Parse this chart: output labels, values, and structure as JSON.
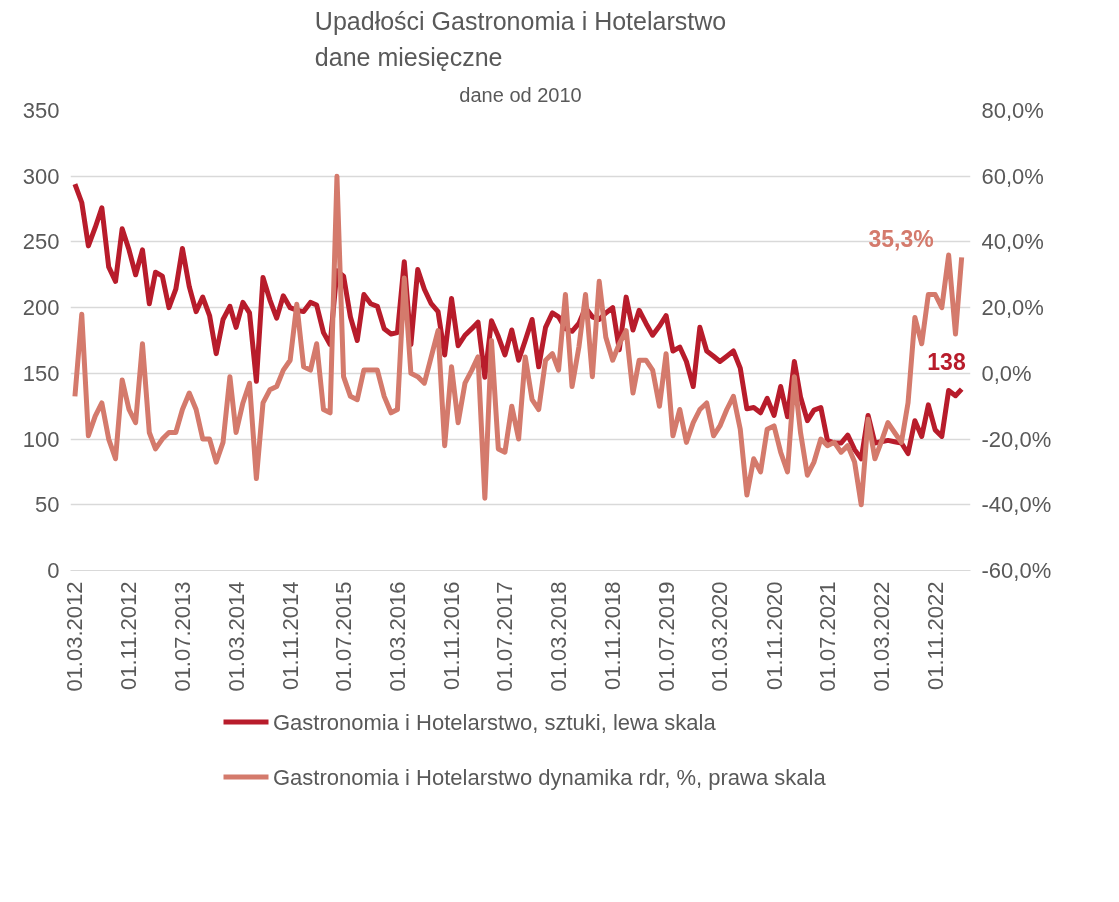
{
  "chart_data": {
    "type": "line",
    "title": "Upadłości Gastronomia i Hotelarstwo\ndane miesięczne",
    "subtitle": "dane od 2010",
    "x": [
      "2012-03",
      "2012-04",
      "2012-05",
      "2012-06",
      "2012-07",
      "2012-08",
      "2012-09",
      "2012-10",
      "2012-11",
      "2012-12",
      "2013-01",
      "2013-02",
      "2013-03",
      "2013-04",
      "2013-05",
      "2013-06",
      "2013-07",
      "2013-08",
      "2013-09",
      "2013-10",
      "2013-11",
      "2013-12",
      "2014-01",
      "2014-02",
      "2014-03",
      "2014-04",
      "2014-05",
      "2014-06",
      "2014-07",
      "2014-08",
      "2014-09",
      "2014-10",
      "2014-11",
      "2014-12",
      "2015-01",
      "2015-02",
      "2015-03",
      "2015-04",
      "2015-05",
      "2015-06",
      "2015-07",
      "2015-08",
      "2015-09",
      "2015-10",
      "2015-11",
      "2015-12",
      "2016-01",
      "2016-02",
      "2016-03",
      "2016-04",
      "2016-05",
      "2016-06",
      "2016-07",
      "2016-08",
      "2016-09",
      "2016-10",
      "2016-11",
      "2016-12",
      "2017-01",
      "2017-02",
      "2017-03",
      "2017-04",
      "2017-05",
      "2017-06",
      "2017-07",
      "2017-08",
      "2017-09",
      "2017-10",
      "2017-11",
      "2017-12",
      "2018-01",
      "2018-02",
      "2018-03",
      "2018-04",
      "2018-05",
      "2018-06",
      "2018-07",
      "2018-08",
      "2018-09",
      "2018-10",
      "2018-11",
      "2018-12",
      "2019-01",
      "2019-02",
      "2019-03",
      "2019-04",
      "2019-05",
      "2019-06",
      "2019-07",
      "2019-08",
      "2019-09",
      "2019-10",
      "2019-11",
      "2019-12",
      "2020-01",
      "2020-02",
      "2020-03",
      "2020-04",
      "2020-05",
      "2020-06",
      "2020-07",
      "2020-08",
      "2020-09",
      "2020-10",
      "2020-11",
      "2020-12",
      "2021-01",
      "2021-02",
      "2021-03",
      "2021-04",
      "2021-05",
      "2021-06",
      "2021-07",
      "2021-08",
      "2021-09",
      "2021-10",
      "2021-11",
      "2021-12",
      "2022-01",
      "2022-02",
      "2022-03",
      "2022-04",
      "2022-05",
      "2022-06",
      "2022-07",
      "2022-08",
      "2022-09",
      "2022-10",
      "2022-11",
      "2022-12",
      "2023-01",
      "2023-02",
      "2023-03"
    ],
    "xlim": [
      "2012-02-10",
      "2023-04-10"
    ],
    "xticks": [
      {
        "value": "2012-03",
        "label": "01.03.2012"
      },
      {
        "value": "2012-11",
        "label": "01.11.2012"
      },
      {
        "value": "2013-07",
        "label": "01.07.2013"
      },
      {
        "value": "2014-03",
        "label": "01.03.2014"
      },
      {
        "value": "2014-11",
        "label": "01.11.2014"
      },
      {
        "value": "2015-07",
        "label": "01.07.2015"
      },
      {
        "value": "2016-03",
        "label": "01.03.2016"
      },
      {
        "value": "2016-11",
        "label": "01.11.2016"
      },
      {
        "value": "2017-07",
        "label": "01.07.2017"
      },
      {
        "value": "2018-03",
        "label": "01.03.2018"
      },
      {
        "value": "2018-11",
        "label": "01.11.2018"
      },
      {
        "value": "2019-07",
        "label": "01.07.2019"
      },
      {
        "value": "2020-03",
        "label": "01.03.2020"
      },
      {
        "value": "2020-11",
        "label": "01.11.2020"
      },
      {
        "value": "2021-07",
        "label": "01.07.2021"
      },
      {
        "value": "2022-03",
        "label": "01.03.2022"
      },
      {
        "value": "2022-11",
        "label": "01.11.2022"
      }
    ],
    "ylim": [
      0,
      350
    ],
    "yticks": [
      0,
      50,
      100,
      150,
      200,
      250,
      300,
      350
    ],
    "y2lim": [
      -60,
      80
    ],
    "y2ticks": [
      {
        "value": -60,
        "label": "-60,0%"
      },
      {
        "value": -40,
        "label": "-40,0%"
      },
      {
        "value": -20,
        "label": "-20,0%"
      },
      {
        "value": 0,
        "label": "0,0%"
      },
      {
        "value": 20,
        "label": "20,0%"
      },
      {
        "value": 40,
        "label": "40,0%"
      },
      {
        "value": 60,
        "label": "60,0%"
      },
      {
        "value": 80,
        "label": "80,0%"
      }
    ],
    "grid": "y",
    "legend": "bottom",
    "marker": "none",
    "line_style": "solid",
    "series": [
      {
        "name": "Gastronomia i Hotelarstwo, sztuki, lewa skala",
        "color": "#b81c2b",
        "values": [
          294,
          280,
          247,
          261,
          276,
          231,
          220,
          260,
          244,
          225,
          244,
          203,
          227,
          224,
          200,
          214,
          245,
          216,
          197,
          208,
          194,
          165,
          191,
          201,
          185,
          204,
          196,
          144,
          223,
          206,
          192,
          209,
          200,
          198,
          197,
          204,
          202,
          181,
          172,
          228,
          224,
          193,
          175,
          210,
          203,
          201,
          184,
          180,
          181,
          235,
          172,
          229,
          214,
          203,
          197,
          164,
          207,
          171,
          179,
          184,
          189,
          147,
          190,
          178,
          164,
          183,
          160,
          175,
          191,
          155,
          185,
          196,
          193,
          184,
          182,
          188,
          200,
          193,
          191,
          196,
          200,
          168,
          208,
          183,
          198,
          188,
          179,
          186,
          194,
          167,
          170,
          159,
          140,
          185,
          167,
          163,
          159,
          163,
          167,
          154,
          123,
          124,
          120,
          131,
          118,
          140,
          117,
          159,
          132,
          114,
          122,
          124,
          99,
          97,
          97,
          103,
          92,
          85,
          118,
          97,
          98,
          99,
          98,
          97,
          89,
          114,
          102,
          126,
          107,
          102,
          137,
          133,
          138
        ],
        "value_labels": [
          null,
          null,
          null,
          null,
          null,
          null,
          null,
          null,
          null,
          null,
          null,
          null,
          null,
          null,
          null,
          null,
          null,
          null,
          null,
          null,
          null,
          null,
          null,
          null,
          null,
          null,
          null,
          null,
          null,
          null,
          null,
          null,
          null,
          null,
          null,
          null,
          null,
          null,
          null,
          null,
          null,
          null,
          null,
          null,
          null,
          null,
          null,
          null,
          null,
          null,
          null,
          null,
          null,
          null,
          null,
          null,
          null,
          null,
          null,
          null,
          null,
          null,
          null,
          null,
          null,
          null,
          null,
          null,
          null,
          null,
          null,
          null,
          null,
          null,
          null,
          null,
          null,
          null,
          null,
          null,
          null,
          null,
          null,
          null,
          null,
          null,
          null,
          null,
          null,
          null,
          null,
          null,
          null,
          null,
          null,
          null,
          null,
          null,
          null,
          null,
          null,
          null,
          null,
          null,
          null,
          null,
          null,
          null,
          null,
          null,
          null,
          null,
          null,
          null,
          null,
          null,
          null,
          null,
          null,
          null,
          null,
          null,
          null,
          null,
          null,
          null,
          null,
          null,
          null,
          null,
          null,
          null,
          "138"
        ]
      },
      {
        "name": "Gastronomia i Hotelarstwo dynamika rdr, %, prawa skala",
        "color": "#d47a6c",
        "axis": "y2",
        "values": [
          -7,
          18,
          -19,
          -13,
          -9,
          -20,
          -26,
          -2,
          -11,
          -15,
          9,
          -18,
          -23,
          -20,
          -18,
          -18,
          -11,
          -6,
          -11,
          -20,
          -20,
          -27,
          -21,
          -1,
          -18,
          -9,
          -3,
          -32,
          -9,
          -5,
          -4,
          1,
          4,
          21,
          2,
          1,
          9,
          -11,
          -12,
          60,
          -1,
          -7,
          -8,
          1,
          1,
          1,
          -7,
          -12,
          -11,
          29,
          0,
          -1,
          -3,
          5,
          13,
          -22,
          2,
          -15,
          -3,
          1,
          5,
          -38,
          10,
          -23,
          -24,
          -10,
          -20,
          5,
          -8,
          -11,
          4,
          6,
          1,
          24,
          -4,
          8,
          24,
          -1,
          28,
          11,
          4,
          9,
          13,
          -6,
          4,
          4,
          1,
          -10,
          6,
          -19,
          -11,
          -21,
          -15,
          -11,
          -9,
          -19,
          -16,
          -11,
          -7,
          -17,
          -37,
          -26,
          -30,
          -17,
          -16,
          -24,
          -30,
          -1,
          -18,
          -31,
          -27,
          -20,
          -22,
          -21,
          -24,
          -22,
          -27,
          -40,
          -14,
          -26,
          -21,
          -15,
          -18,
          -21,
          -9,
          17,
          9,
          24,
          24,
          20,
          36,
          12,
          35.3
        ],
        "value_labels": [
          null,
          null,
          null,
          null,
          null,
          null,
          null,
          null,
          null,
          null,
          null,
          null,
          null,
          null,
          null,
          null,
          null,
          null,
          null,
          null,
          null,
          null,
          null,
          null,
          null,
          null,
          null,
          null,
          null,
          null,
          null,
          null,
          null,
          null,
          null,
          null,
          null,
          null,
          null,
          null,
          null,
          null,
          null,
          null,
          null,
          null,
          null,
          null,
          null,
          null,
          null,
          null,
          null,
          null,
          null,
          null,
          null,
          null,
          null,
          null,
          null,
          null,
          null,
          null,
          null,
          null,
          null,
          null,
          null,
          null,
          null,
          null,
          null,
          null,
          null,
          null,
          null,
          null,
          null,
          null,
          null,
          null,
          null,
          null,
          null,
          null,
          null,
          null,
          null,
          null,
          null,
          null,
          null,
          null,
          null,
          null,
          null,
          null,
          null,
          null,
          null,
          null,
          null,
          null,
          null,
          null,
          null,
          null,
          null,
          null,
          null,
          null,
          null,
          null,
          null,
          null,
          null,
          null,
          null,
          null,
          null,
          null,
          null,
          null,
          null,
          null,
          null,
          null,
          null,
          null,
          null,
          null,
          "35,3%"
        ]
      }
    ]
  }
}
